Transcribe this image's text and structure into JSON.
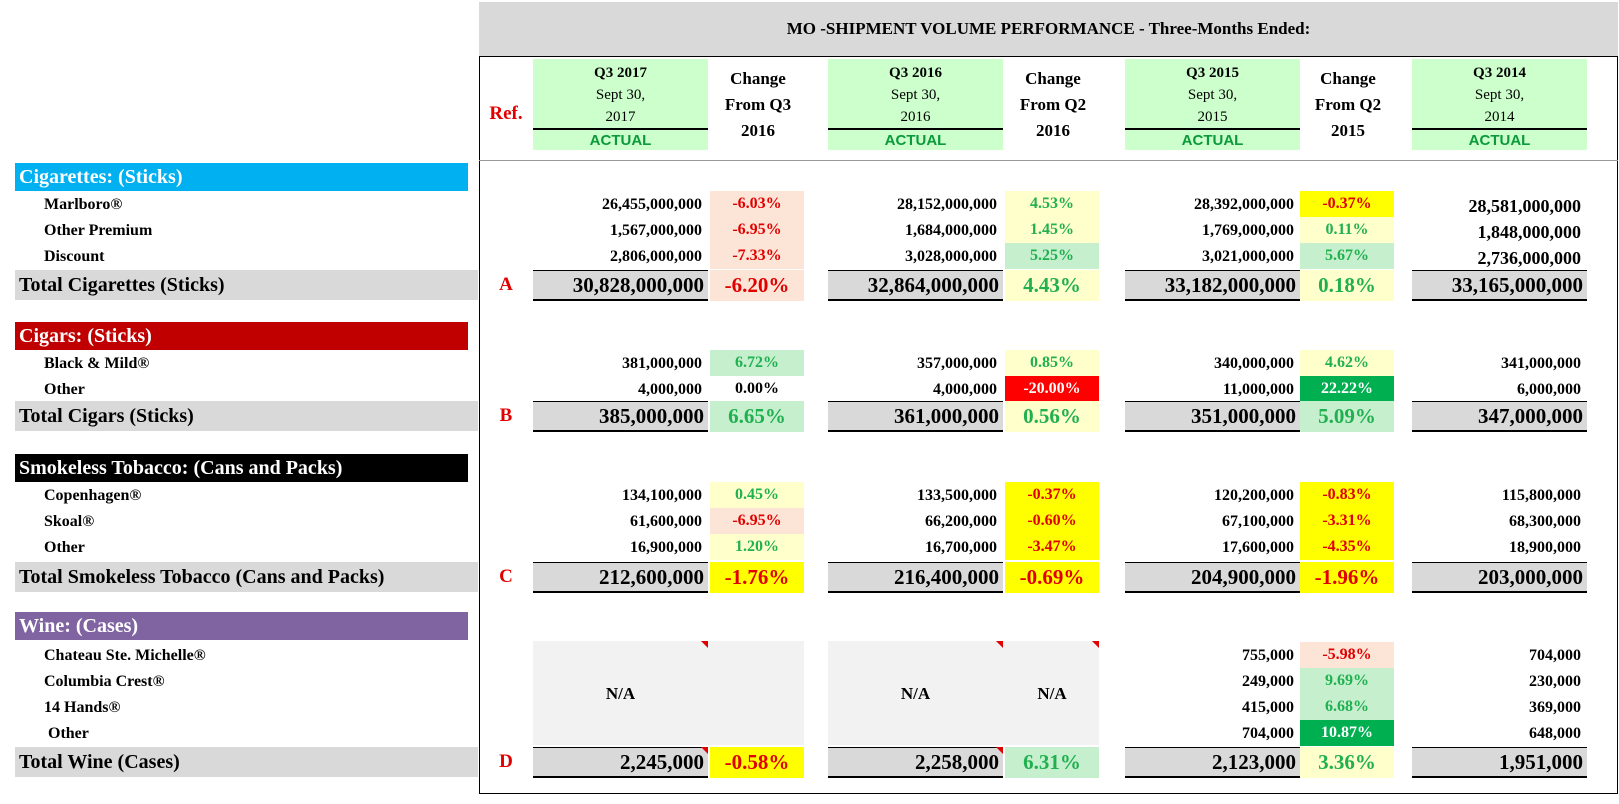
{
  "title": "MO -SHIPMENT VOLUME PERFORMANCE - Three-Months Ended:",
  "header": {
    "ref": "Ref.",
    "periods": [
      {
        "q": "Q3 2017",
        "l1": "Sept 30,",
        "l2": "2017",
        "actual": "ACTUAL"
      },
      {
        "q": "Q3 2016",
        "l1": "Sept 30,",
        "l2": "2016",
        "actual": "ACTUAL"
      },
      {
        "q": "Q3 2015",
        "l1": "Sept 30,",
        "l2": "2015",
        "actual": "ACTUAL"
      },
      {
        "q": "Q3 2014",
        "l1": "Sept 30,",
        "l2": "2014",
        "actual": "ACTUAL"
      }
    ],
    "changes": [
      {
        "l1": "Change",
        "l2": "From Q3",
        "l3": "2016"
      },
      {
        "l1": "Change",
        "l2": "From Q2",
        "l3": "2016"
      },
      {
        "l1": "Change",
        "l2": "From Q2",
        "l3": "2015"
      }
    ]
  },
  "sections": [
    {
      "title": "Cigarettes: (Sticks)",
      "color": "#00b0f0",
      "rows": [
        {
          "label": "Marlboro®",
          "v": [
            "26,455,000,000",
            "28,152,000,000",
            "28,392,000,000",
            "28,581,000,000"
          ],
          "c": [
            "-6.03%",
            "4.53%",
            "-0.37%"
          ]
        },
        {
          "label": "Other Premium",
          "v": [
            "1,567,000,000",
            "1,684,000,000",
            "1,769,000,000",
            "1,848,000,000"
          ],
          "c": [
            "-6.95%",
            "1.45%",
            "0.11%"
          ]
        },
        {
          "label": "Discount",
          "v": [
            "2,806,000,000",
            "3,028,000,000",
            "3,021,000,000",
            "2,736,000,000"
          ],
          "c": [
            "-7.33%",
            "5.25%",
            "5.67%"
          ]
        }
      ],
      "total": {
        "label": "Total Cigarettes (Sticks)",
        "ref": "A",
        "v": [
          "30,828,000,000",
          "32,864,000,000",
          "33,182,000,000",
          "33,165,000,000"
        ],
        "c": [
          "-6.20%",
          "4.43%",
          "0.18%"
        ]
      }
    },
    {
      "title": "Cigars: (Sticks)",
      "color": "#c00000",
      "rows": [
        {
          "label": "Black & Mild®",
          "v": [
            "381,000,000",
            "357,000,000",
            "340,000,000",
            "341,000,000"
          ],
          "c": [
            "6.72%",
            "0.85%",
            "4.62%"
          ]
        },
        {
          "label": "Other",
          "v": [
            "4,000,000",
            "4,000,000",
            "11,000,000",
            "6,000,000"
          ],
          "c": [
            "0.00%",
            "-20.00%",
            "22.22%"
          ]
        }
      ],
      "total": {
        "label": "Total Cigars (Sticks)",
        "ref": "B",
        "v": [
          "385,000,000",
          "361,000,000",
          "351,000,000",
          "347,000,000"
        ],
        "c": [
          "6.65%",
          "0.56%",
          "5.09%"
        ]
      }
    },
    {
      "title": "Smokeless Tobacco: (Cans and Packs)",
      "color": "#000000",
      "rows": [
        {
          "label": "Copenhagen®",
          "v": [
            "134,100,000",
            "133,500,000",
            "120,200,000",
            "115,800,000"
          ],
          "c": [
            "0.45%",
            "-0.37%",
            "-0.83%"
          ]
        },
        {
          "label": "Skoal®",
          "v": [
            "61,600,000",
            "66,200,000",
            "67,100,000",
            "68,300,000"
          ],
          "c": [
            "-6.95%",
            "-0.60%",
            "-3.31%"
          ]
        },
        {
          "label": "Other",
          "v": [
            "16,900,000",
            "16,700,000",
            "17,600,000",
            "18,900,000"
          ],
          "c": [
            "1.20%",
            "-3.47%",
            "-4.35%"
          ]
        }
      ],
      "total": {
        "label": "Total Smokeless Tobacco (Cans and Packs)",
        "ref": "C",
        "v": [
          "212,600,000",
          "216,400,000",
          "204,900,000",
          "203,000,000"
        ],
        "c": [
          "-1.76%",
          "-0.69%",
          "-1.96%"
        ]
      }
    },
    {
      "title": "Wine: (Cases)",
      "color": "#8064a2",
      "na": "N/A",
      "rows": [
        {
          "label": "Chateau Ste. Michelle®",
          "v": [
            "",
            "",
            "755,000",
            "704,000"
          ],
          "c": [
            "",
            "",
            "-5.98%"
          ]
        },
        {
          "label": "Columbia Crest®",
          "v": [
            "",
            "",
            "249,000",
            "230,000"
          ],
          "c": [
            "",
            "",
            "9.69%"
          ]
        },
        {
          "label": "14 Hands®",
          "v": [
            "",
            "",
            "415,000",
            "369,000"
          ],
          "c": [
            "",
            "",
            "6.68%"
          ]
        },
        {
          "label": "Other",
          "v": [
            "",
            "",
            "704,000",
            "648,000"
          ],
          "c": [
            "",
            "",
            "10.87%"
          ]
        }
      ],
      "total": {
        "label": "Total Wine (Cases)",
        "ref": "D",
        "v": [
          "2,245,000",
          "2,258,000",
          "2,123,000",
          "1,951,000"
        ],
        "c": [
          "-0.58%",
          "6.31%",
          "3.36%"
        ]
      }
    }
  ]
}
